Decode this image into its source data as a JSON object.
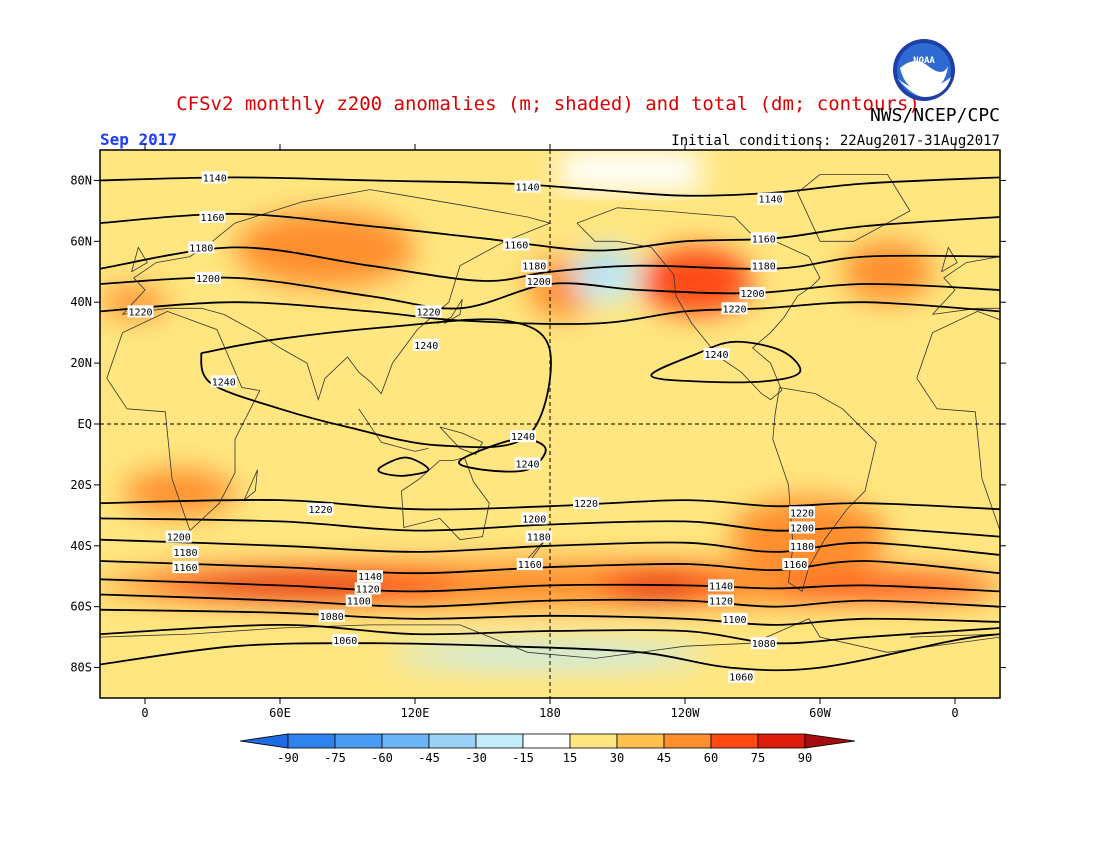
{
  "header": {
    "title": "CFSv2 monthly z200 anomalies (m; shaded) and total (dm; contours)",
    "agency": "NWS/NCEP/CPC",
    "month": "Sep 2017",
    "initial_conditions": "Initial conditions: 22Aug2017-31Aug2017",
    "logo_text": "NOAA"
  },
  "colors": {
    "title": "#dd0000",
    "month": "#1e3cff",
    "contour": "#000000",
    "frame": "#000000",
    "land_outline": "#333333"
  },
  "axes": {
    "lat_labels": [
      "80N",
      "60N",
      "40N",
      "20N",
      "EQ",
      "20S",
      "40S",
      "60S",
      "80S"
    ],
    "lat_values": [
      80,
      60,
      40,
      20,
      0,
      -20,
      -40,
      -60,
      -80
    ],
    "lon_labels": [
      "0",
      "60E",
      "120E",
      "180",
      "120W",
      "60W",
      "0"
    ],
    "lon_values": [
      0,
      60,
      120,
      180,
      240,
      300,
      360
    ],
    "lon_range": [
      -20,
      380
    ],
    "lat_range": [
      -90,
      90
    ],
    "dashed_lines": [
      "EQ",
      "180"
    ]
  },
  "colorbar": {
    "levels": [
      "-90",
      "-75",
      "-60",
      "-45",
      "-30",
      "-15",
      "15",
      "30",
      "45",
      "60",
      "75",
      "90"
    ],
    "colors": [
      "#1e6be3",
      "#2f83ee",
      "#4a9bf2",
      "#6bb4f5",
      "#9bd0f7",
      "#c2ecf7",
      "#ffffff",
      "#ffe680",
      "#ffc14d",
      "#ff8f2e",
      "#ff4a12",
      "#dd1d0c",
      "#a30d0d"
    ]
  },
  "contours": [
    {
      "label": "1140",
      "points": [
        [
          -20,
          80
        ],
        [
          40,
          81
        ],
        [
          100,
          80
        ],
        [
          160,
          79
        ],
        [
          200,
          77
        ],
        [
          240,
          75
        ],
        [
          280,
          76
        ],
        [
          320,
          79
        ],
        [
          380,
          81
        ]
      ],
      "labels_at": [
        [
          31,
          81
        ],
        [
          170,
          78
        ],
        [
          278,
          74
        ]
      ]
    },
    {
      "label": "1160",
      "points": [
        [
          -20,
          66
        ],
        [
          40,
          69
        ],
        [
          100,
          65
        ],
        [
          150,
          61
        ],
        [
          200,
          57
        ],
        [
          240,
          60
        ],
        [
          280,
          61
        ],
        [
          320,
          65
        ],
        [
          380,
          68
        ]
      ],
      "labels_at": [
        [
          30,
          68
        ],
        [
          165,
          59
        ],
        [
          275,
          61
        ]
      ]
    },
    {
      "label": "1180",
      "points": [
        [
          -20,
          51
        ],
        [
          40,
          58
        ],
        [
          100,
          52
        ],
        [
          150,
          47
        ],
        [
          180,
          50
        ],
        [
          220,
          52
        ],
        [
          280,
          51
        ],
        [
          320,
          55
        ],
        [
          380,
          55
        ]
      ],
      "labels_at": [
        [
          25,
          58
        ],
        [
          173,
          52
        ],
        [
          275,
          52
        ]
      ]
    },
    {
      "label": "1200",
      "points": [
        [
          -20,
          46
        ],
        [
          40,
          48
        ],
        [
          100,
          42
        ],
        [
          140,
          38
        ],
        [
          180,
          46
        ],
        [
          220,
          44
        ],
        [
          270,
          43
        ],
        [
          320,
          46
        ],
        [
          380,
          44
        ]
      ],
      "labels_at": [
        [
          28,
          48
        ],
        [
          175,
          47
        ],
        [
          270,
          43
        ]
      ]
    },
    {
      "label": "1220",
      "points": [
        [
          -20,
          37
        ],
        [
          40,
          40
        ],
        [
          100,
          37
        ],
        [
          140,
          34
        ],
        [
          200,
          33
        ],
        [
          240,
          37
        ],
        [
          275,
          38
        ],
        [
          320,
          40
        ],
        [
          380,
          37
        ]
      ],
      "labels_at": [
        [
          -2,
          37
        ],
        [
          126,
          37
        ],
        [
          262,
          38
        ]
      ]
    },
    {
      "label": "1240",
      "points": [
        [
          30,
          24
        ],
        [
          60,
          28
        ],
        [
          110,
          32
        ],
        [
          160,
          34
        ],
        [
          180,
          24
        ],
        [
          170,
          -4
        ],
        [
          130,
          -7
        ],
        [
          90,
          -1
        ],
        [
          60,
          5
        ],
        [
          30,
          13
        ],
        [
          25,
          22
        ]
      ],
      "closed": true,
      "labels_at": [
        [
          35,
          14
        ],
        [
          125,
          26
        ],
        [
          168,
          -4
        ]
      ]
    },
    {
      "label": "1240",
      "points": [
        [
          225,
          16
        ],
        [
          245,
          23
        ],
        [
          262,
          27
        ],
        [
          283,
          24
        ],
        [
          291,
          17
        ],
        [
          275,
          14
        ],
        [
          245,
          14
        ]
      ],
      "closed": true,
      "labels_at": [
        [
          254,
          23
        ]
      ]
    },
    {
      "label": "1240",
      "points": [
        [
          105,
          -14
        ],
        [
          116,
          -11
        ],
        [
          126,
          -15
        ],
        [
          115,
          -17
        ],
        [
          105,
          -16
        ]
      ],
      "closed": true,
      "labels_at": []
    },
    {
      "label": "1240",
      "points": [
        [
          140,
          -12
        ],
        [
          165,
          -5
        ],
        [
          178,
          -8
        ],
        [
          170,
          -15
        ],
        [
          150,
          -15
        ]
      ],
      "closed": true,
      "labels_at": [
        [
          170,
          -13
        ]
      ]
    },
    {
      "label": "1220",
      "points": [
        [
          -20,
          -26
        ],
        [
          60,
          -25
        ],
        [
          120,
          -28
        ],
        [
          180,
          -27
        ],
        [
          240,
          -25
        ],
        [
          280,
          -27
        ],
        [
          320,
          -26
        ],
        [
          380,
          -28
        ]
      ],
      "labels_at": [
        [
          78,
          -28
        ],
        [
          196,
          -26
        ],
        [
          292,
          -29
        ]
      ]
    },
    {
      "label": "1200",
      "points": [
        [
          -20,
          -31
        ],
        [
          60,
          -32
        ],
        [
          120,
          -35
        ],
        [
          180,
          -33
        ],
        [
          240,
          -32
        ],
        [
          280,
          -35
        ],
        [
          320,
          -34
        ],
        [
          380,
          -37
        ]
      ],
      "labels_at": [
        [
          15,
          -37
        ],
        [
          173,
          -31
        ],
        [
          292,
          -34
        ]
      ]
    },
    {
      "label": "1180",
      "points": [
        [
          -20,
          -38
        ],
        [
          60,
          -40
        ],
        [
          120,
          -42
        ],
        [
          180,
          -40
        ],
        [
          240,
          -39
        ],
        [
          280,
          -42
        ],
        [
          320,
          -39
        ],
        [
          380,
          -43
        ]
      ],
      "labels_at": [
        [
          18,
          -42
        ],
        [
          175,
          -37
        ],
        [
          292,
          -40
        ]
      ]
    },
    {
      "label": "1160",
      "points": [
        [
          -20,
          -45
        ],
        [
          60,
          -47
        ],
        [
          120,
          -49
        ],
        [
          180,
          -47
        ],
        [
          240,
          -46
        ],
        [
          280,
          -48
        ],
        [
          320,
          -45
        ],
        [
          380,
          -49
        ]
      ],
      "labels_at": [
        [
          18,
          -47
        ],
        [
          171,
          -46
        ],
        [
          289,
          -46
        ]
      ]
    },
    {
      "label": "1140",
      "points": [
        [
          -20,
          -51
        ],
        [
          60,
          -53
        ],
        [
          120,
          -55
        ],
        [
          180,
          -53
        ],
        [
          240,
          -53
        ],
        [
          280,
          -54
        ],
        [
          320,
          -53
        ],
        [
          380,
          -55
        ]
      ],
      "labels_at": [
        [
          100,
          -50
        ],
        [
          256,
          -53
        ]
      ]
    },
    {
      "label": "1120",
      "points": [
        [
          -20,
          -56
        ],
        [
          60,
          -58
        ],
        [
          120,
          -60
        ],
        [
          180,
          -58
        ],
        [
          240,
          -58
        ],
        [
          280,
          -60
        ],
        [
          320,
          -58
        ],
        [
          380,
          -60
        ]
      ],
      "labels_at": [
        [
          99,
          -54
        ],
        [
          256,
          -58
        ]
      ]
    },
    {
      "label": "1100",
      "points": [
        [
          -20,
          -61
        ],
        [
          60,
          -62
        ],
        [
          120,
          -64
        ],
        [
          180,
          -63
        ],
        [
          240,
          -64
        ],
        [
          280,
          -66
        ],
        [
          320,
          -64
        ],
        [
          380,
          -65
        ]
      ],
      "labels_at": [
        [
          95,
          -58
        ],
        [
          262,
          -64
        ]
      ]
    },
    {
      "label": "1080",
      "points": [
        [
          -20,
          -69
        ],
        [
          60,
          -66
        ],
        [
          120,
          -69
        ],
        [
          180,
          -68
        ],
        [
          240,
          -68
        ],
        [
          280,
          -72
        ],
        [
          320,
          -70
        ],
        [
          380,
          -67
        ]
      ],
      "labels_at": [
        [
          83,
          -63
        ],
        [
          275,
          -72
        ]
      ]
    },
    {
      "label": "1060",
      "points": [
        [
          -20,
          -79
        ],
        [
          40,
          -73
        ],
        [
          100,
          -72
        ],
        [
          160,
          -73
        ],
        [
          220,
          -75
        ],
        [
          260,
          -80
        ],
        [
          300,
          -80
        ],
        [
          360,
          -71
        ],
        [
          380,
          -69
        ]
      ],
      "labels_at": [
        [
          89,
          -71
        ],
        [
          265,
          -83
        ]
      ]
    }
  ],
  "blobs": [
    {
      "lat": [
        -50,
        -60
      ],
      "lon": [
        -20,
        380
      ],
      "level": 2
    },
    {
      "lat": [
        -60,
        -45
      ],
      "lon": [
        -20,
        380
      ],
      "level": 3
    },
    {
      "lat": [
        -58,
        -48
      ],
      "lon": [
        0,
        140
      ],
      "level": 4
    },
    {
      "lat": [
        -58,
        -48
      ],
      "lon": [
        200,
        260
      ],
      "level": 4
    },
    {
      "lat": [
        -58,
        -50
      ],
      "lon": [
        280,
        380
      ],
      "level": 4
    },
    {
      "lat": [
        -56,
        -50
      ],
      "lon": [
        20,
        110
      ],
      "level": 5
    },
    {
      "lat": [
        -58,
        -51
      ],
      "lon": [
        210,
        245
      ],
      "level": 5
    },
    {
      "lat": [
        -25,
        -35
      ],
      "lon": [
        280,
        320
      ],
      "level": 5
    },
    {
      "lat": [
        -50,
        -24
      ],
      "lon": [
        260,
        330
      ],
      "level": 3
    },
    {
      "lat": [
        -30,
        -15
      ],
      "lon": [
        -10,
        40
      ],
      "level": 3
    },
    {
      "lat": [
        55,
        38
      ],
      "lon": [
        230,
        260
      ],
      "level": 5
    },
    {
      "lat": [
        58,
        36
      ],
      "lon": [
        220,
        270
      ],
      "level": 4
    },
    {
      "lat": [
        70,
        45
      ],
      "lon": [
        40,
        120
      ],
      "level": 3
    },
    {
      "lat": [
        55,
        35
      ],
      "lon": [
        170,
        200
      ],
      "level": 3
    },
    {
      "lat": [
        60,
        40
      ],
      "lon": [
        310,
        350
      ],
      "level": 3
    },
    {
      "lat": [
        45,
        35
      ],
      "lon": [
        -20,
        10
      ],
      "level": 3
    },
    {
      "lat": [
        58,
        40
      ],
      "lon": [
        190,
        220
      ],
      "level": -1
    },
    {
      "lat": [
        56,
        50
      ],
      "lon": [
        195,
        210
      ],
      "level": -2
    },
    {
      "lat": [
        -72,
        -80
      ],
      "lon": [
        110,
        250
      ],
      "level": -1
    }
  ]
}
